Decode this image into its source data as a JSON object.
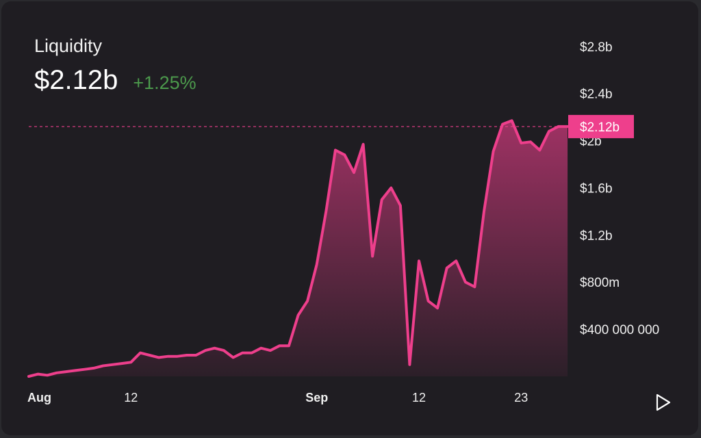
{
  "header": {
    "title": "Liquidity",
    "value": "$2.12b",
    "change": "+1.25%"
  },
  "colors": {
    "background": "#1f1d22",
    "line": "#ee3f8c",
    "positive": "#4c9a4c",
    "label_bg": "#ee3f8c"
  },
  "icons": {
    "play": "play-triangle-icon"
  },
  "chart_data": {
    "type": "area",
    "title": "Liquidity",
    "current_label": "$2.12b",
    "current_value": 2.12,
    "unit": "billion USD",
    "ylim": [
      0.0,
      2.95
    ],
    "y_ticks": [
      {
        "value": 2.8,
        "label": "$2.8b"
      },
      {
        "value": 2.4,
        "label": "$2.4b"
      },
      {
        "value": 2.0,
        "label": "$2b"
      },
      {
        "value": 1.6,
        "label": "$1.6b"
      },
      {
        "value": 1.2,
        "label": "$1.2b"
      },
      {
        "value": 0.8,
        "label": "$800m"
      },
      {
        "value": 0.4,
        "label": "$400 000 000"
      }
    ],
    "xlim": [
      "2024-08-01",
      "2024-09-26"
    ],
    "x_ticks": [
      {
        "date": "2024-08-01",
        "label": "Aug",
        "bold": true
      },
      {
        "date": "2024-08-12",
        "label": "12",
        "bold": false
      },
      {
        "date": "2024-09-01",
        "label": "Sep",
        "bold": true
      },
      {
        "date": "2024-09-12",
        "label": "12",
        "bold": false
      },
      {
        "date": "2024-09-23",
        "label": "23",
        "bold": false
      }
    ],
    "grid": false,
    "series": [
      {
        "points": [
          [
            "2024-08-01",
            0.0
          ],
          [
            "2024-08-02",
            0.02
          ],
          [
            "2024-08-03",
            0.01
          ],
          [
            "2024-08-04",
            0.03
          ],
          [
            "2024-08-05",
            0.04
          ],
          [
            "2024-08-06",
            0.05
          ],
          [
            "2024-08-07",
            0.06
          ],
          [
            "2024-08-08",
            0.07
          ],
          [
            "2024-08-09",
            0.09
          ],
          [
            "2024-08-10",
            0.1
          ],
          [
            "2024-08-11",
            0.11
          ],
          [
            "2024-08-12",
            0.12
          ],
          [
            "2024-08-13",
            0.2
          ],
          [
            "2024-08-14",
            0.18
          ],
          [
            "2024-08-15",
            0.16
          ],
          [
            "2024-08-16",
            0.17
          ],
          [
            "2024-08-17",
            0.17
          ],
          [
            "2024-08-18",
            0.18
          ],
          [
            "2024-08-19",
            0.18
          ],
          [
            "2024-08-20",
            0.22
          ],
          [
            "2024-08-21",
            0.24
          ],
          [
            "2024-08-22",
            0.22
          ],
          [
            "2024-08-23",
            0.16
          ],
          [
            "2024-08-24",
            0.2
          ],
          [
            "2024-08-25",
            0.2
          ],
          [
            "2024-08-26",
            0.24
          ],
          [
            "2024-08-27",
            0.22
          ],
          [
            "2024-08-28",
            0.26
          ],
          [
            "2024-08-29",
            0.26
          ],
          [
            "2024-08-30",
            0.52
          ],
          [
            "2024-08-31",
            0.64
          ],
          [
            "2024-09-01",
            0.95
          ],
          [
            "2024-09-02",
            1.4
          ],
          [
            "2024-09-03",
            1.92
          ],
          [
            "2024-09-04",
            1.88
          ],
          [
            "2024-09-05",
            1.73
          ],
          [
            "2024-09-06",
            1.97
          ],
          [
            "2024-09-07",
            1.02
          ],
          [
            "2024-09-08",
            1.5
          ],
          [
            "2024-09-09",
            1.6
          ],
          [
            "2024-09-10",
            1.45
          ],
          [
            "2024-09-11",
            0.1
          ],
          [
            "2024-09-12",
            0.98
          ],
          [
            "2024-09-13",
            0.64
          ],
          [
            "2024-09-14",
            0.58
          ],
          [
            "2024-09-15",
            0.92
          ],
          [
            "2024-09-16",
            0.98
          ],
          [
            "2024-09-17",
            0.8
          ],
          [
            "2024-09-18",
            0.76
          ],
          [
            "2024-09-19",
            1.4
          ],
          [
            "2024-09-20",
            1.91
          ],
          [
            "2024-09-21",
            2.14
          ],
          [
            "2024-09-22",
            2.17
          ],
          [
            "2024-09-23",
            1.98
          ],
          [
            "2024-09-24",
            1.99
          ],
          [
            "2024-09-25",
            1.92
          ],
          [
            "2024-09-26",
            2.08
          ],
          [
            "2024-09-27",
            2.12
          ],
          [
            "2024-09-28",
            2.12
          ]
        ]
      }
    ]
  }
}
